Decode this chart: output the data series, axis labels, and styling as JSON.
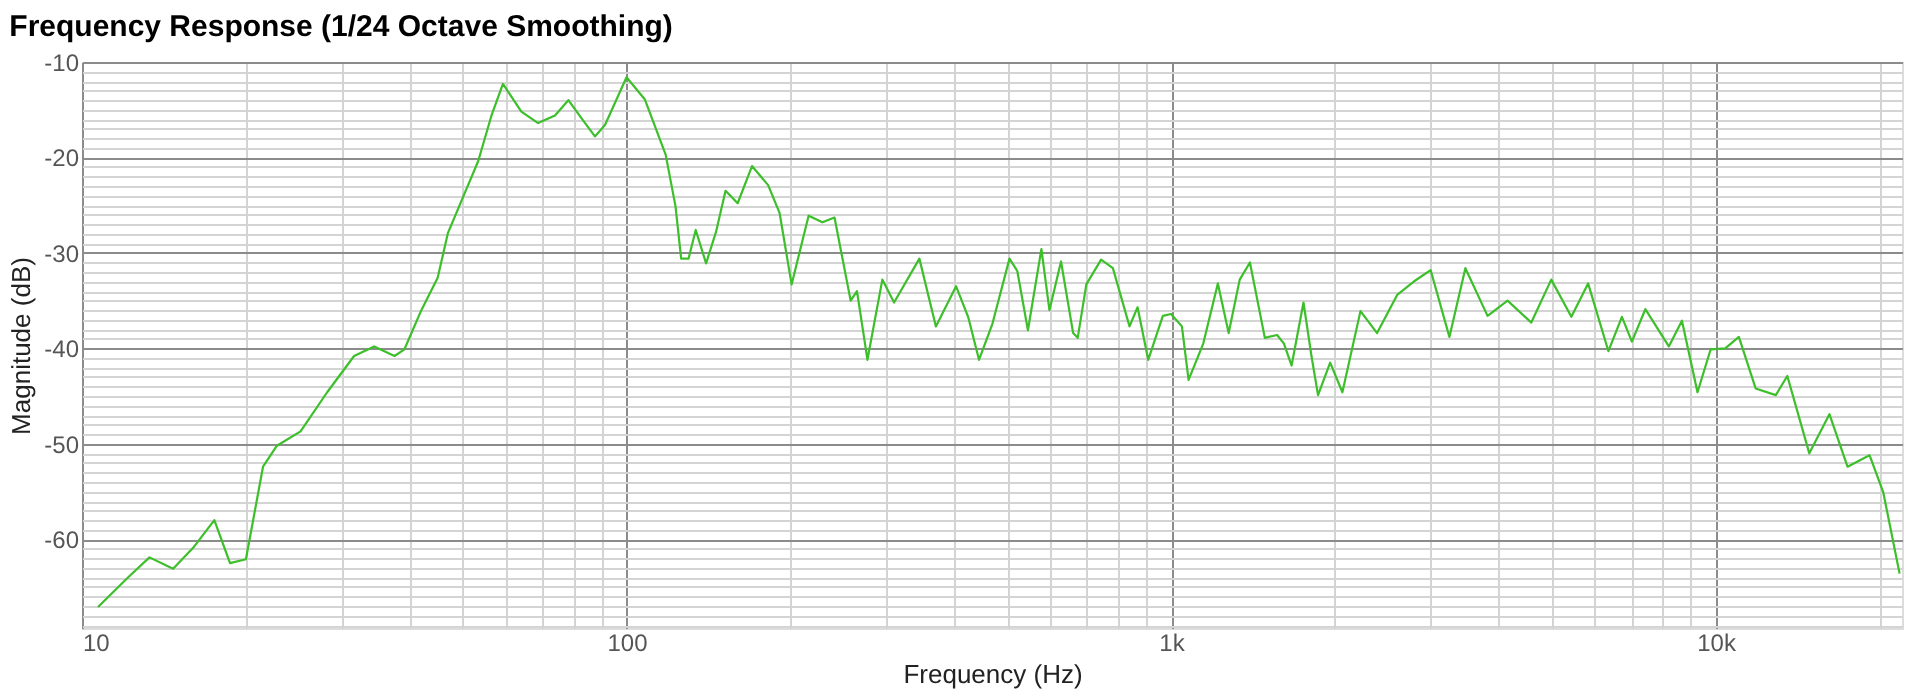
{
  "chart_data": {
    "type": "line",
    "title": "Frequency Response (1/24 Octave Smoothing)",
    "xlabel": "Frequency (Hz)",
    "ylabel": "Magnitude (dB)",
    "log": "x",
    "grid": true,
    "marker": "none",
    "line_style": "solid",
    "xlim": [
      10,
      22000
    ],
    "ylim": [
      -69.3,
      -10
    ],
    "xticks": [
      {
        "value": 10,
        "label": "10"
      },
      {
        "value": 20,
        "label": null
      },
      {
        "value": 30,
        "label": null
      },
      {
        "value": 40,
        "label": null
      },
      {
        "value": 50,
        "label": null
      },
      {
        "value": 60,
        "label": null
      },
      {
        "value": 70,
        "label": null
      },
      {
        "value": 80,
        "label": null
      },
      {
        "value": 90,
        "label": null
      },
      {
        "value": 100,
        "label": "100"
      },
      {
        "value": 200,
        "label": null
      },
      {
        "value": 300,
        "label": null
      },
      {
        "value": 400,
        "label": null
      },
      {
        "value": 500,
        "label": null
      },
      {
        "value": 600,
        "label": null
      },
      {
        "value": 700,
        "label": null
      },
      {
        "value": 800,
        "label": null
      },
      {
        "value": 900,
        "label": null
      },
      {
        "value": 1000,
        "label": "1k"
      },
      {
        "value": 2000,
        "label": null
      },
      {
        "value": 3000,
        "label": null
      },
      {
        "value": 4000,
        "label": null
      },
      {
        "value": 5000,
        "label": null
      },
      {
        "value": 6000,
        "label": null
      },
      {
        "value": 7000,
        "label": null
      },
      {
        "value": 8000,
        "label": null
      },
      {
        "value": 9000,
        "label": null
      },
      {
        "value": 10000,
        "label": "10k"
      },
      {
        "value": 20000,
        "label": null
      }
    ],
    "yticks": [
      -10,
      {
        "value": -11,
        "label": null
      },
      {
        "value": -12,
        "label": null
      },
      {
        "value": -13,
        "label": null
      },
      {
        "value": -14,
        "label": null
      },
      {
        "value": -15,
        "label": null
      },
      {
        "value": -16,
        "label": null
      },
      {
        "value": -17,
        "label": null
      },
      {
        "value": -18,
        "label": null
      },
      {
        "value": -19,
        "label": null
      },
      -20,
      {
        "value": -21,
        "label": null
      },
      {
        "value": -22,
        "label": null
      },
      {
        "value": -23,
        "label": null
      },
      {
        "value": -24,
        "label": null
      },
      {
        "value": -25,
        "label": null
      },
      {
        "value": -26,
        "label": null
      },
      {
        "value": -27,
        "label": null
      },
      {
        "value": -28,
        "label": null
      },
      {
        "value": -29,
        "label": null
      },
      -30,
      {
        "value": -31,
        "label": null
      },
      {
        "value": -32,
        "label": null
      },
      {
        "value": -33,
        "label": null
      },
      {
        "value": -34,
        "label": null
      },
      {
        "value": -35,
        "label": null
      },
      {
        "value": -36,
        "label": null
      },
      {
        "value": -37,
        "label": null
      },
      {
        "value": -38,
        "label": null
      },
      {
        "value": -39,
        "label": null
      },
      -40,
      {
        "value": -41,
        "label": null
      },
      {
        "value": -42,
        "label": null
      },
      {
        "value": -43,
        "label": null
      },
      {
        "value": -44,
        "label": null
      },
      {
        "value": -45,
        "label": null
      },
      {
        "value": -46,
        "label": null
      },
      {
        "value": -47,
        "label": null
      },
      {
        "value": -48,
        "label": null
      },
      {
        "value": -49,
        "label": null
      },
      -50,
      {
        "value": -51,
        "label": null
      },
      {
        "value": -52,
        "label": null
      },
      {
        "value": -53,
        "label": null
      },
      {
        "value": -54,
        "label": null
      },
      {
        "value": -55,
        "label": null
      },
      {
        "value": -56,
        "label": null
      },
      {
        "value": -57,
        "label": null
      },
      {
        "value": -58,
        "label": null
      },
      {
        "value": -59,
        "label": null
      },
      -60,
      {
        "value": -61,
        "label": null
      },
      {
        "value": -62,
        "label": null
      },
      {
        "value": -63,
        "label": null
      },
      {
        "value": -64,
        "label": null
      },
      {
        "value": -65,
        "label": null
      },
      {
        "value": -66,
        "label": null
      },
      {
        "value": -67,
        "label": null
      },
      {
        "value": -68,
        "label": null
      },
      {
        "value": -69,
        "label": null
      }
    ],
    "series": [
      {
        "color": "#3cbf2a",
        "x": [
          10.7,
          12.2,
          13.3,
          14.7,
          16.0,
          17.5,
          18.7,
          20.0,
          21.5,
          22.8,
          25.2,
          28.2,
          31.6,
          34.4,
          37.5,
          39.1,
          42.0,
          45.0,
          47.0,
          49.8,
          53.4,
          56.5,
          59.3,
          64.1,
          68.8,
          73.9,
          78.2,
          82.7,
          87.5,
          91.3,
          100,
          108,
          118,
          123,
          126,
          130,
          134,
          140,
          146,
          152,
          160,
          170,
          182,
          191,
          201,
          216,
          229,
          241,
          258,
          265,
          277,
          295,
          310,
          345,
          370,
          403,
          424,
          444,
          470,
          505,
          522,
          546,
          578,
          598,
          628,
          661,
          674,
          699,
          744,
          782,
          839,
          868,
          908,
          966,
          1000,
          1047,
          1077,
          1146,
          1219,
          1276,
          1337,
          1396,
          1487,
          1566,
          1612,
          1665,
          1751,
          1811,
          1862,
          1960,
          2064,
          2228,
          2390,
          2602,
          2792,
          2997,
          3245,
          3472,
          3813,
          4150,
          4588,
          4992,
          5435,
          5834,
          6357,
          6730,
          7021,
          7431,
          8208,
          8675,
          9265,
          9797,
          10419,
          11036,
          11848,
          12903,
          13546,
          14866,
          16185,
          17472,
          19180,
          20326,
          21777
        ],
        "values": [
          -67.1,
          -63.9,
          -61.9,
          -63.1,
          -60.9,
          -58.0,
          -62.5,
          -62.1,
          -52.4,
          -50.2,
          -48.7,
          -44.6,
          -40.8,
          -39.8,
          -40.8,
          -40.1,
          -36.0,
          -32.6,
          -27.9,
          -24.5,
          -20.4,
          -15.6,
          -12.3,
          -15.2,
          -16.4,
          -15.6,
          -14.0,
          -15.9,
          -17.8,
          -16.6,
          -11.6,
          -13.9,
          -19.7,
          -25.1,
          -30.6,
          -30.6,
          -27.6,
          -31.1,
          -27.8,
          -23.5,
          -24.8,
          -20.9,
          -22.9,
          -25.8,
          -33.3,
          -26.1,
          -26.8,
          -26.3,
          -35.0,
          -34.0,
          -41.2,
          -32.8,
          -35.2,
          -30.6,
          -37.7,
          -33.5,
          -36.7,
          -41.2,
          -37.4,
          -30.6,
          -31.9,
          -38.1,
          -29.6,
          -36.0,
          -30.9,
          -38.4,
          -38.9,
          -33.3,
          -30.7,
          -31.6,
          -37.7,
          -35.7,
          -41.2,
          -36.6,
          -36.4,
          -37.7,
          -43.3,
          -39.5,
          -33.2,
          -38.4,
          -32.8,
          -31.0,
          -38.9,
          -38.6,
          -39.5,
          -41.8,
          -35.2,
          -40.8,
          -44.9,
          -41.5,
          -44.6,
          -36.1,
          -38.4,
          -34.4,
          -33.0,
          -31.8,
          -38.8,
          -31.6,
          -36.6,
          -35.0,
          -37.3,
          -32.8,
          -36.7,
          -33.2,
          -40.3,
          -36.7,
          -39.3,
          -35.9,
          -39.8,
          -37.1,
          -44.6,
          -40.1,
          -40.0,
          -38.8,
          -44.2,
          -44.9,
          -42.9,
          -51.0,
          -46.9,
          -52.4,
          -51.2,
          -55.1,
          -63.6
        ]
      }
    ]
  }
}
